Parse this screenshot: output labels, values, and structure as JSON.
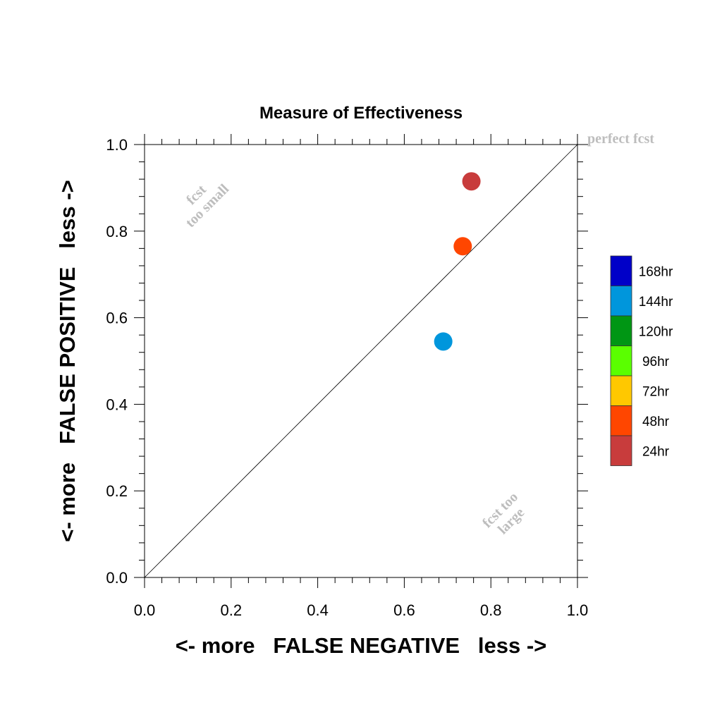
{
  "chart_data": {
    "type": "scatter",
    "title": "Measure of Effectiveness",
    "xlabel": "<- more   FALSE NEGATIVE   less ->",
    "ylabel": "<- more   FALSE POSITIVE   less ->",
    "xlim": [
      0.0,
      1.0
    ],
    "ylim": [
      0.0,
      1.0
    ],
    "x_ticks": [
      "0.0",
      "0.2",
      "0.4",
      "0.6",
      "0.8",
      "1.0"
    ],
    "y_ticks": [
      "0.0",
      "0.2",
      "0.4",
      "0.6",
      "0.8",
      "1.0"
    ],
    "grid": false,
    "reference_line": "diagonal",
    "annotations": {
      "perfect": "perfect fcst",
      "too_small": [
        "fcst",
        "too small"
      ],
      "too_large": [
        "fcst too",
        "large"
      ]
    },
    "legend_position": "right",
    "legend": [
      {
        "label": "168hr",
        "color": "#0000c8"
      },
      {
        "label": "144hr",
        "color": "#0096dc"
      },
      {
        "label": "120hr",
        "color": "#009614"
      },
      {
        "label": "96hr",
        "color": "#5aff00"
      },
      {
        "label": "72hr",
        "color": "#ffc800"
      },
      {
        "label": "48hr",
        "color": "#ff4600"
      },
      {
        "label": "24hr",
        "color": "#c83c3c"
      }
    ],
    "points": [
      {
        "series": "24hr",
        "x": 0.755,
        "y": 0.915,
        "color": "#c83c3c"
      },
      {
        "series": "48hr",
        "x": 0.735,
        "y": 0.765,
        "color": "#ff4600"
      },
      {
        "series": "144hr",
        "x": 0.69,
        "y": 0.545,
        "color": "#0096dc"
      }
    ]
  }
}
